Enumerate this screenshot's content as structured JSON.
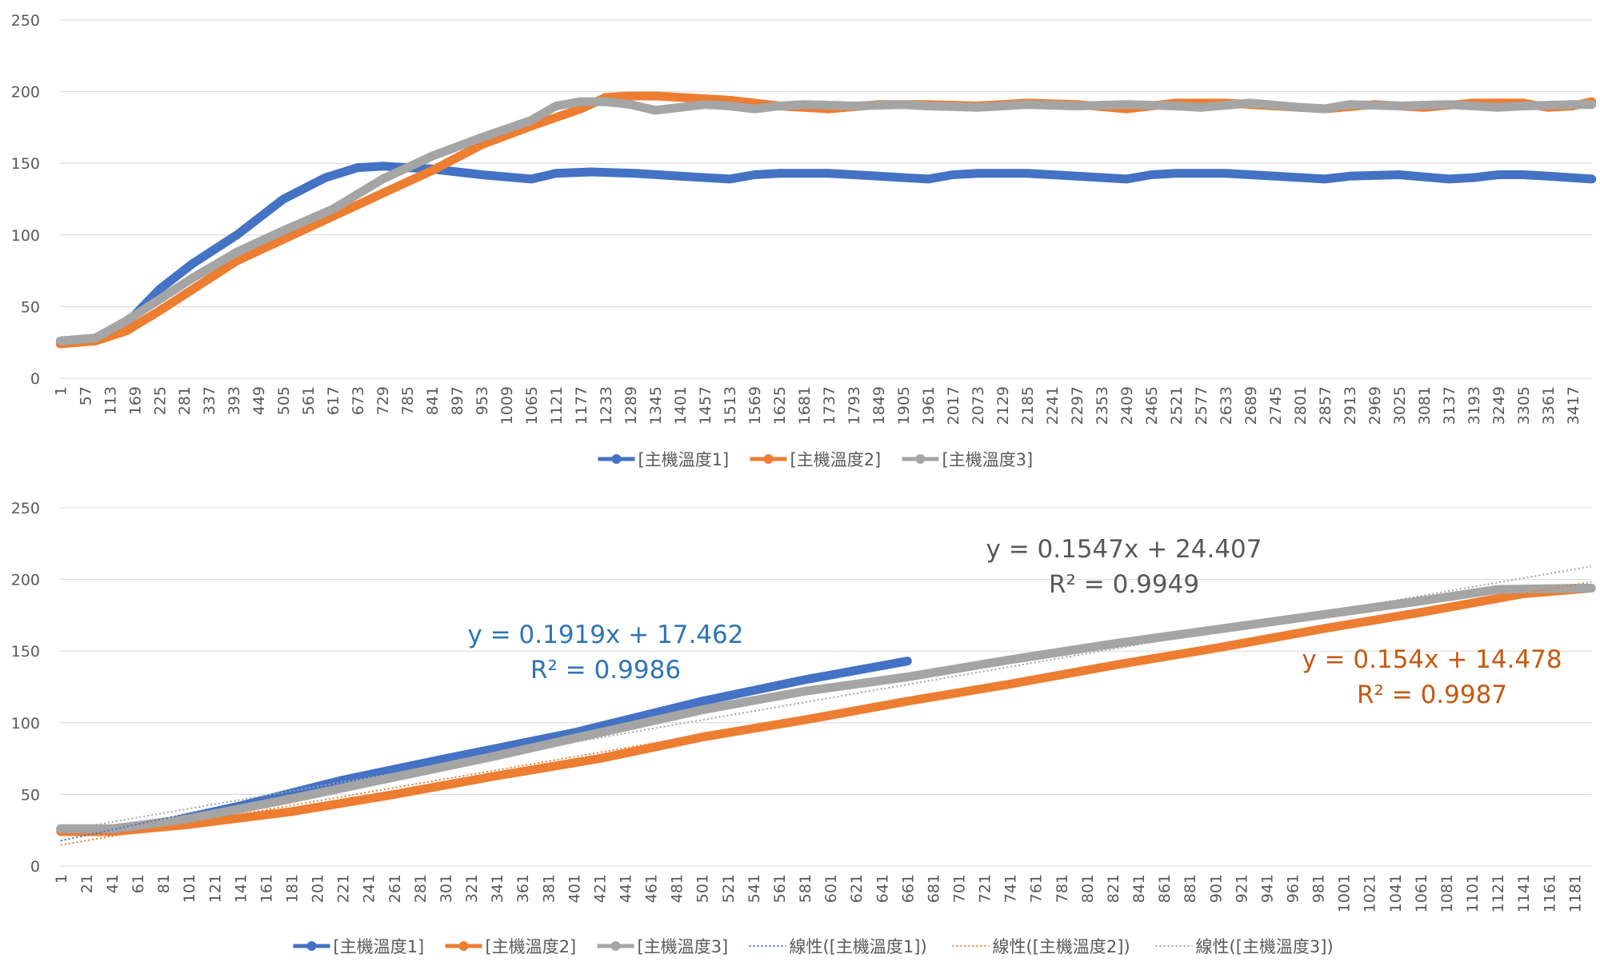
{
  "colors": {
    "series1": "#4472C4",
    "series2": "#ED7D31",
    "series3": "#A5A5A5",
    "eq1": "#2E75B6",
    "eq2": "#C55A11",
    "eq3": "#595959",
    "grid": "#D9D9D9",
    "text": "#595959"
  },
  "chart_data": [
    {
      "type": "line",
      "grid": "horizontal",
      "legend_position": "bottom",
      "ylim": [
        0,
        250
      ],
      "yticks": [
        "0",
        "50",
        "100",
        "150",
        "200",
        "250"
      ],
      "x_count": 3460,
      "x_tick_start": 1,
      "x_tick_step": 56,
      "legend": [
        "[主機溫度1]",
        "[主機溫度2]",
        "[主機溫度3]"
      ],
      "series": [
        {
          "name": "[主機溫度1]",
          "points": [
            [
              1,
              26
            ],
            [
              80,
              28
            ],
            [
              150,
              38
            ],
            [
              225,
              62
            ],
            [
              300,
              80
            ],
            [
              400,
              100
            ],
            [
              505,
              125
            ],
            [
              600,
              140
            ],
            [
              673,
              147
            ],
            [
              730,
              148
            ],
            [
              785,
              147
            ],
            [
              841,
              146
            ],
            [
              953,
              142
            ],
            [
              1065,
              139
            ],
            [
              1121,
              143
            ],
            [
              1200,
              144
            ],
            [
              1300,
              143
            ],
            [
              1400,
              141
            ],
            [
              1513,
              139
            ],
            [
              1569,
              142
            ],
            [
              1625,
              143
            ],
            [
              1737,
              143
            ],
            [
              1849,
              141
            ],
            [
              1961,
              139
            ],
            [
              2017,
              142
            ],
            [
              2073,
              143
            ],
            [
              2185,
              143
            ],
            [
              2297,
              141
            ],
            [
              2409,
              139
            ],
            [
              2465,
              142
            ],
            [
              2521,
              143
            ],
            [
              2633,
              143
            ],
            [
              2745,
              141
            ],
            [
              2857,
              139
            ],
            [
              2913,
              141
            ],
            [
              3025,
              142
            ],
            [
              3137,
              139
            ],
            [
              3193,
              140
            ],
            [
              3249,
              142
            ],
            [
              3305,
              142
            ],
            [
              3361,
              141
            ],
            [
              3460,
              139
            ]
          ]
        },
        {
          "name": "[主機溫度2]",
          "points": [
            [
              1,
              24
            ],
            [
              80,
              26
            ],
            [
              150,
              33
            ],
            [
              225,
              47
            ],
            [
              300,
              62
            ],
            [
              400,
              82
            ],
            [
              505,
              97
            ],
            [
              617,
              113
            ],
            [
              729,
              129
            ],
            [
              841,
              145
            ],
            [
              953,
              163
            ],
            [
              1065,
              176
            ],
            [
              1177,
              188
            ],
            [
              1233,
              196
            ],
            [
              1289,
              197
            ],
            [
              1345,
              197
            ],
            [
              1401,
              196
            ],
            [
              1513,
              194
            ],
            [
              1625,
              190
            ],
            [
              1737,
              188
            ],
            [
              1849,
              191
            ],
            [
              1961,
              191
            ],
            [
              2073,
              190
            ],
            [
              2185,
              192
            ],
            [
              2297,
              191
            ],
            [
              2409,
              188
            ],
            [
              2521,
              192
            ],
            [
              2633,
              192
            ],
            [
              2745,
              190
            ],
            [
              2857,
              188
            ],
            [
              2969,
              191
            ],
            [
              3081,
              189
            ],
            [
              3193,
              192
            ],
            [
              3305,
              192
            ],
            [
              3361,
              189
            ],
            [
              3417,
              190
            ],
            [
              3460,
              193
            ]
          ]
        },
        {
          "name": "[主機溫度3]",
          "points": [
            [
              1,
              26
            ],
            [
              80,
              28
            ],
            [
              150,
              40
            ],
            [
              225,
              55
            ],
            [
              300,
              70
            ],
            [
              400,
              88
            ],
            [
              505,
              103
            ],
            [
              617,
              118
            ],
            [
              729,
              139
            ],
            [
              841,
              155
            ],
            [
              953,
              168
            ],
            [
              1065,
              180
            ],
            [
              1121,
              190
            ],
            [
              1177,
              193
            ],
            [
              1233,
              193
            ],
            [
              1289,
              191
            ],
            [
              1345,
              187
            ],
            [
              1401,
              189
            ],
            [
              1457,
              191
            ],
            [
              1513,
              190
            ],
            [
              1569,
              188
            ],
            [
              1625,
              190
            ],
            [
              1681,
              191
            ],
            [
              1793,
              190
            ],
            [
              1905,
              191
            ],
            [
              1961,
              190
            ],
            [
              2073,
              189
            ],
            [
              2185,
              191
            ],
            [
              2297,
              190
            ],
            [
              2409,
              191
            ],
            [
              2521,
              190
            ],
            [
              2577,
              189
            ],
            [
              2689,
              192
            ],
            [
              2801,
              189
            ],
            [
              2857,
              188
            ],
            [
              2913,
              191
            ],
            [
              3025,
              190
            ],
            [
              3137,
              191
            ],
            [
              3249,
              189
            ],
            [
              3305,
              190
            ],
            [
              3417,
              191
            ],
            [
              3460,
              191
            ]
          ]
        }
      ]
    },
    {
      "type": "line",
      "grid": "horizontal",
      "legend_position": "bottom",
      "ylim": [
        0,
        250
      ],
      "yticks": [
        "0",
        "50",
        "100",
        "150",
        "200",
        "250"
      ],
      "x_count": 1194,
      "x_tick_start": 1,
      "x_tick_step": 20,
      "legend": [
        "[主機溫度1]",
        "[主機溫度2]",
        "[主機溫度3]",
        "線性([主機溫度1])",
        "線性([主機溫度2])",
        "線性([主機溫度3])"
      ],
      "series": [
        {
          "name": "[主機溫度1]",
          "points": [
            [
              1,
              26
            ],
            [
              41,
              26
            ],
            [
              81,
              30
            ],
            [
              141,
              42
            ],
            [
              221,
              60
            ],
            [
              301,
              75
            ],
            [
              401,
              93
            ],
            [
              501,
              115
            ],
            [
              581,
              130
            ],
            [
              661,
              143
            ]
          ]
        },
        {
          "name": "[主機溫度2]",
          "points": [
            [
              1,
              24
            ],
            [
              41,
              24
            ],
            [
              101,
              29
            ],
            [
              181,
              38
            ],
            [
              261,
              50
            ],
            [
              341,
              63
            ],
            [
              421,
              75
            ],
            [
              501,
              90
            ],
            [
              581,
              102
            ],
            [
              661,
              115
            ],
            [
              741,
              127
            ],
            [
              821,
              140
            ],
            [
              901,
              152
            ],
            [
              981,
              165
            ],
            [
              1061,
              177
            ],
            [
              1141,
              190
            ],
            [
              1194,
              194
            ]
          ]
        },
        {
          "name": "[主機溫度3]",
          "points": [
            [
              1,
              26
            ],
            [
              41,
              26
            ],
            [
              101,
              33
            ],
            [
              181,
              47
            ],
            [
              261,
              62
            ],
            [
              341,
              77
            ],
            [
              421,
              93
            ],
            [
              501,
              109
            ],
            [
              581,
              122
            ],
            [
              661,
              132
            ],
            [
              741,
              144
            ],
            [
              821,
              155
            ],
            [
              901,
              165
            ],
            [
              981,
              175
            ],
            [
              1061,
              185
            ],
            [
              1121,
              193
            ],
            [
              1194,
              194
            ]
          ]
        }
      ],
      "trendlines": [
        {
          "name": "線性([主機溫度1])",
          "slope": 0.1919,
          "intercept": 17.462,
          "x_range": [
            1,
            661
          ],
          "equation": "y = 0.1919x + 17.462",
          "r2": "R² = 0.9986"
        },
        {
          "name": "線性([主機溫度2])",
          "slope": 0.154,
          "intercept": 14.478,
          "x_range": [
            1,
            1194
          ],
          "equation": "y = 0.154x + 14.478",
          "r2": "R² = 0.9987"
        },
        {
          "name": "線性([主機溫度3])",
          "slope": 0.1547,
          "intercept": 24.407,
          "x_range": [
            1,
            1194
          ],
          "equation": "y = 0.1547x + 24.407",
          "r2": "R² = 0.9949"
        }
      ]
    }
  ]
}
